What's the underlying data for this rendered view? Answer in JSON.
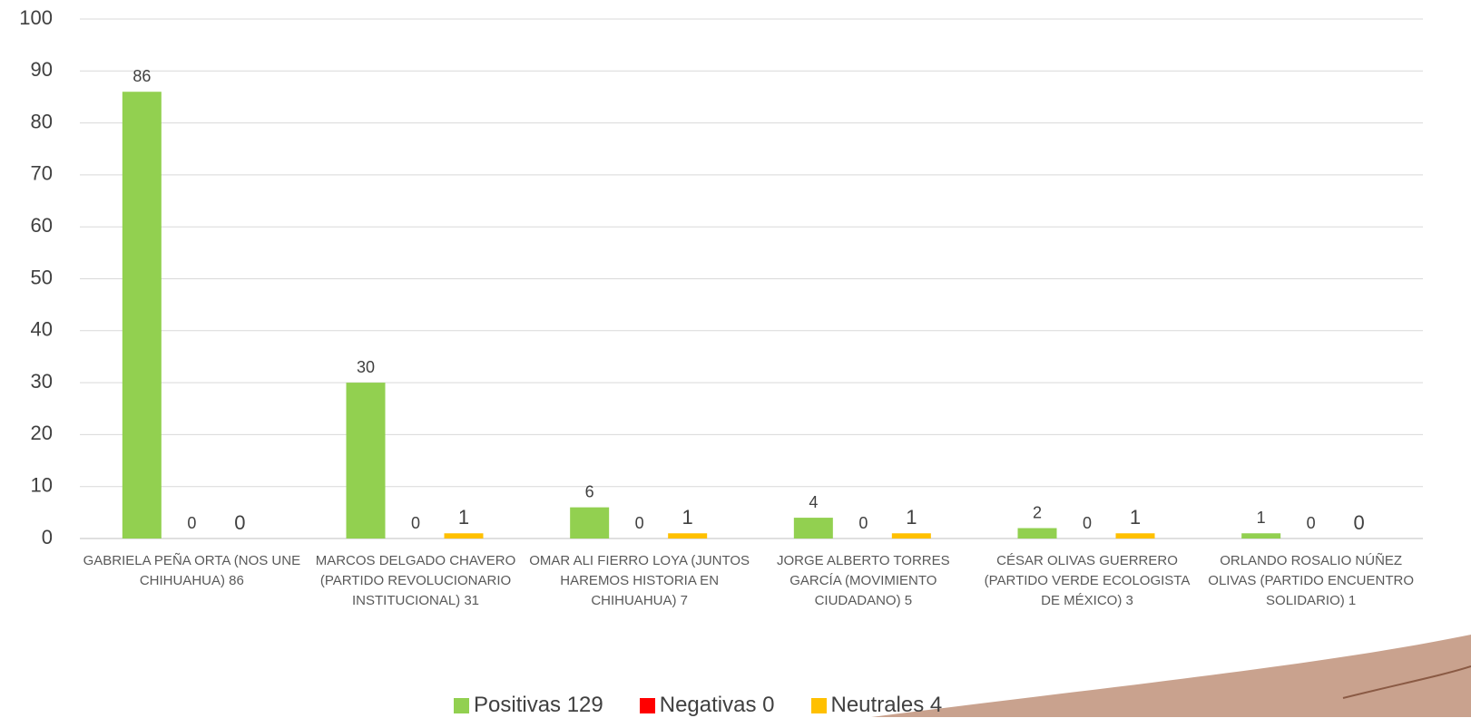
{
  "chart_data": {
    "type": "bar",
    "categories": [
      "GABRIELA PEÑA ORTA (NOS UNE CHIHUAHUA) 86",
      "MARCOS DELGADO CHAVERO (PARTIDO REVOLUCIONARIO INSTITUCIONAL) 31",
      "OMAR ALI FIERRO LOYA (JUNTOS HAREMOS HISTORIA EN CHIHUAHUA) 7",
      "JORGE ALBERTO TORRES GARCÍA (MOVIMIENTO CIUDADANO) 5",
      "CÉSAR OLIVAS GUERRERO (PARTIDO VERDE ECOLOGISTA DE MÉXICO) 3",
      "ORLANDO ROSALIO NÚÑEZ OLIVAS (PARTIDO ENCUENTRO SOLIDARIO) 1"
    ],
    "series": [
      {
        "name": "Positivas 129",
        "color": "#92d050",
        "values": [
          86,
          30,
          6,
          4,
          2,
          1
        ]
      },
      {
        "name": "Negativas 0",
        "color": "#ff0000",
        "values": [
          0,
          0,
          0,
          0,
          0,
          0
        ]
      },
      {
        "name": "Neutrales 4",
        "color": "#ffc000",
        "values": [
          0,
          1,
          1,
          1,
          1,
          0
        ]
      }
    ],
    "ylim": [
      0,
      100
    ],
    "yticks": [
      0,
      10,
      20,
      30,
      40,
      50,
      60,
      70,
      80,
      90,
      100
    ],
    "grid": true,
    "legend": "bottom"
  }
}
